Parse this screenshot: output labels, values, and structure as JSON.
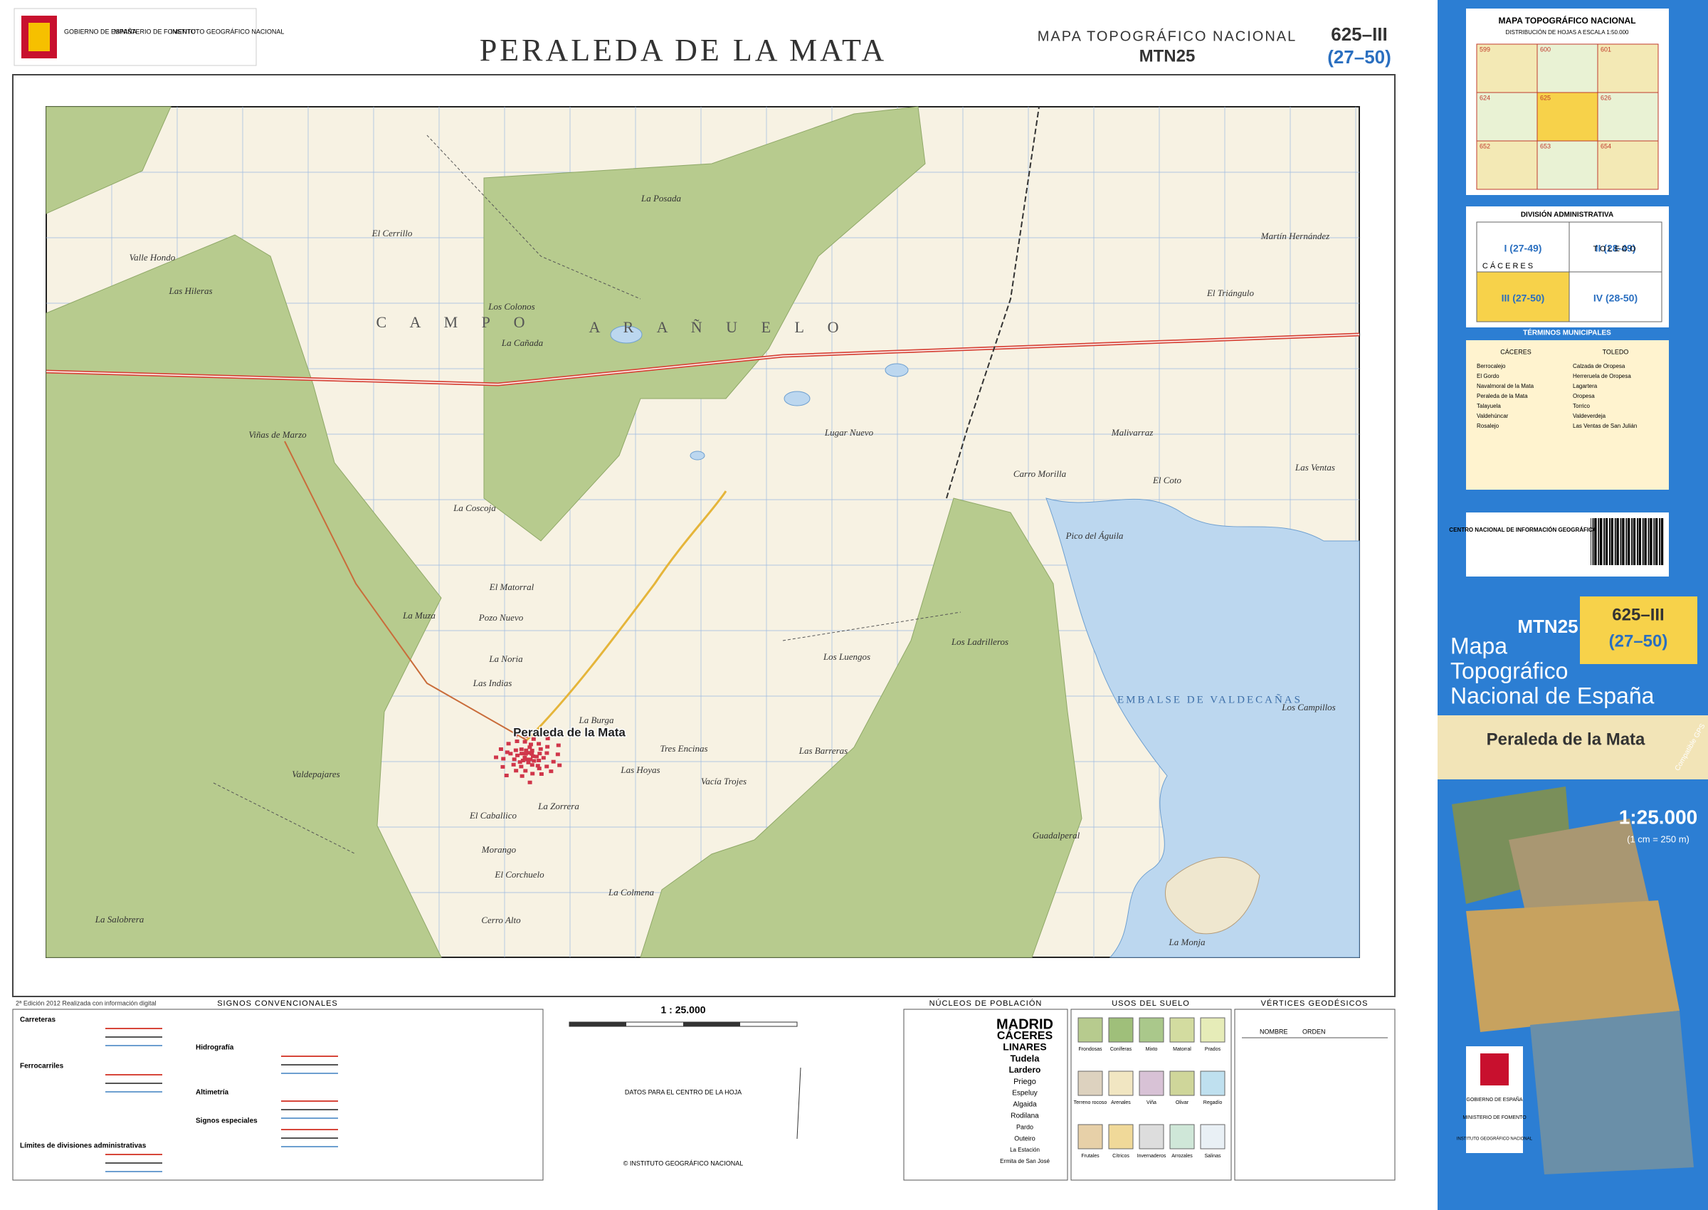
{
  "header": {
    "logos": [
      "GOBIERNO DE ESPAÑA",
      "MINISTERIO DE FOMENTO",
      "INSTITUTO GEOGRÁFICO NACIONAL"
    ],
    "title": "PERALEDA DE LA MATA",
    "series": "MAPA TOPOGRÁFICO NACIONAL",
    "series_code": "MTN25",
    "sheet": "625–III",
    "sheet_grid": "(27–50)"
  },
  "map": {
    "town": "Peraleda de la Mata",
    "reservoir": "EMBALSE DE VALDECAÑAS",
    "region": [
      "C A M P O",
      "A R A Ñ U E L O"
    ],
    "labels": [
      "La Posada",
      "El Cerrillo",
      "Valle Hondo",
      "Las Hileras",
      "Los Colonos",
      "La Cañada",
      "Viñas de Marzo",
      "Lugar Nuevo",
      "La Coscoja",
      "El Matorral",
      "La Muza",
      "Pozo Nuevo",
      "La Noria",
      "Las Indias",
      "Los Luengos",
      "Los Ladrilleros",
      "La Burga",
      "Tres Encinas",
      "Las Barreras",
      "Las Hoyas",
      "Vacía Trojes",
      "La Zorrera",
      "El Caballico",
      "Morango",
      "El Corchuelo",
      "La Colmena",
      "Cerro Alto",
      "La Salobrera",
      "Valdepajares",
      "Malivarraz",
      "Carro Morilla",
      "El Coto",
      "Pico del Águila",
      "Las Ventas",
      "Los Campillos",
      "Guadalperal",
      "La Monja",
      "El Triángulo",
      "Martín Hernández"
    ],
    "edition": "2ª Edición 2012 Realizada con información digital"
  },
  "legend": {
    "signs_title": "SIGNOS CONVENCIONALES",
    "signs": [
      "Carreteras",
      "Ferrocarriles",
      "Límites de divisiones administrativas",
      "Hidrografía",
      "Altimetría",
      "Signos especiales"
    ],
    "scale": "1 : 25.000",
    "declination_title": "DATOS PARA EL CENTRO DE LA HOJA",
    "copyright": "© INSTITUTO GEOGRÁFICO NACIONAL",
    "population_title": "NÚCLEOS DE POBLACIÓN",
    "population": [
      "MADRID",
      "CÁCERES",
      "LINARES",
      "Tudela",
      "Lardero",
      "Priego",
      "Espeluy",
      "Algaida",
      "Rodilana",
      "Pardo",
      "Outeiro",
      "La Estación",
      "Ermita de San José"
    ],
    "land_use_title": "USOS DEL SUELO",
    "land_use": [
      "Frondosas",
      "Coníferas",
      "Mixto",
      "Matorral",
      "Prados",
      "Terreno rocoso",
      "Arenales",
      "Viña",
      "Olivar",
      "Regadío",
      "Frutales",
      "Cítricos",
      "Invernaderos",
      "Arrozales",
      "Salinas"
    ],
    "vertices_title": "VÉRTICES GEODÉSICOS",
    "vertices_headers": [
      "NOMBRE",
      "ORDEN"
    ]
  },
  "sidebar": {
    "index_title": "MAPA TOPOGRÁFICO NACIONAL",
    "index_subtitle": "DISTRIBUCIÓN DE HOJAS A ESCALA 1:50.000",
    "index_sheets": [
      "599",
      "600",
      "601",
      "624",
      "625",
      "626",
      "652",
      "653",
      "654"
    ],
    "division_title": "DIVISIÓN ADMINISTRATIVA",
    "provinces": [
      "CÁCERES",
      "TOLEDO"
    ],
    "quadrants": [
      "I (27-49)",
      "II (28-49)",
      "III (27-50)",
      "IV (28-50)"
    ],
    "municipalities_title": "TÉRMINOS MUNICIPALES",
    "municipalities_caceres": [
      "Berrocalejo",
      "El Gordo",
      "Navalmoral de la Mata",
      "Peraleda de la Mata",
      "Talayuela",
      "Valdehúncar",
      "Rosalejo"
    ],
    "municipalities_toledo": [
      "Calzada de Oropesa",
      "Herreruela de Oropesa",
      "Lagartera",
      "Oropesa",
      "Torrico",
      "Valdeverdeja",
      "Las Ventas de San Julián"
    ],
    "sales": "CENTRO NACIONAL DE INFORMACIÓN GEOGRÁFICA",
    "series_code": "MTN25",
    "sheet": "625–III",
    "sheet_grid": "(27–50)",
    "product": [
      "Mapa",
      "Topográfico",
      "Nacional de España"
    ],
    "name": "Peraleda de la Mata",
    "gps": "Compatible GPS",
    "scale": "1:25.000",
    "scale_note": "(1 cm = 250 m)",
    "logos": [
      "GOBIERNO DE ESPAÑA",
      "MINISTERIO DE FOMENTO",
      "INSTITUTO GEOGRÁFICO NACIONAL"
    ]
  }
}
